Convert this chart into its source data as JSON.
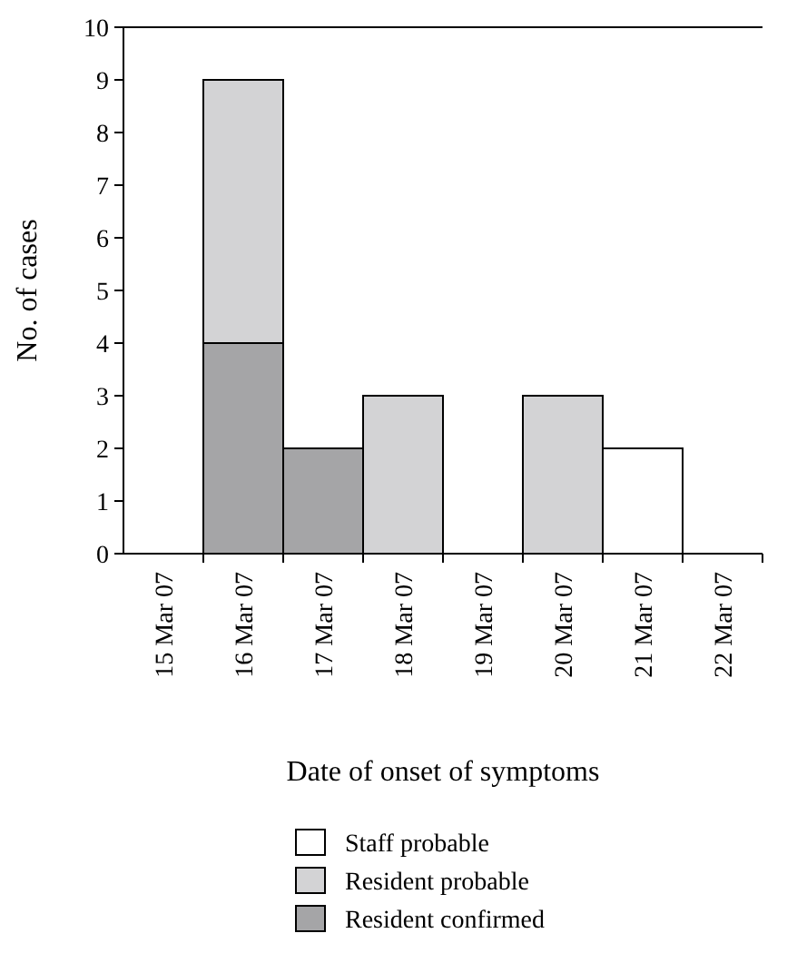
{
  "chart_data": {
    "type": "bar",
    "stacked": true,
    "xlabel": "Date of onset of symptoms",
    "ylabel": "No. of cases",
    "categories": [
      "15 Mar 07",
      "16 Mar 07",
      "17 Mar 07",
      "18 Mar 07",
      "19 Mar 07",
      "20 Mar 07",
      "21 Mar 07",
      "22 Mar 07"
    ],
    "series": [
      {
        "name": "Resident confirmed",
        "color": "#a5a5a7",
        "values": [
          0,
          4,
          2,
          0,
          0,
          0,
          0,
          0
        ]
      },
      {
        "name": "Resident probable",
        "color": "#d3d3d5",
        "values": [
          0,
          5,
          0,
          3,
          0,
          3,
          0,
          0
        ]
      },
      {
        "name": "Staff probable",
        "color": "#ffffff",
        "values": [
          0,
          0,
          0,
          0,
          0,
          0,
          2,
          0
        ]
      }
    ],
    "ylim": [
      0,
      10
    ],
    "yticks": [
      0,
      1,
      2,
      3,
      4,
      5,
      6,
      7,
      8,
      9,
      10
    ],
    "grid": false,
    "legend": "bottom"
  }
}
